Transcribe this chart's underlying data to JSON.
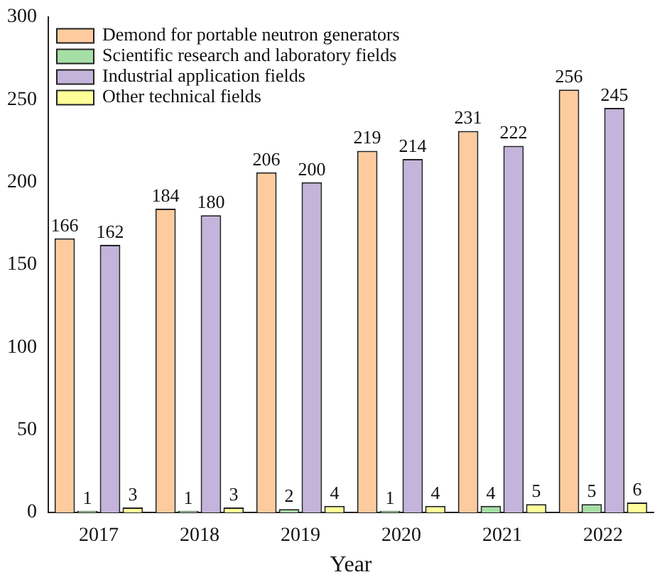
{
  "chart_data": {
    "type": "bar",
    "xlabel": "Year",
    "categories": [
      "2017",
      "2018",
      "2019",
      "2020",
      "2021",
      "2022"
    ],
    "series": [
      {
        "name": "Demond for portable neutron generators",
        "color": "#fdcb9e",
        "values": [
          166,
          184,
          206,
          219,
          231,
          256
        ]
      },
      {
        "name": "Scientific research and laboratory fields",
        "color": "#a6dfa6",
        "values": [
          1,
          1,
          2,
          1,
          4,
          5
        ]
      },
      {
        "name": "Industrial application fields",
        "color": "#c4b4db",
        "values": [
          162,
          180,
          200,
          214,
          222,
          245
        ]
      },
      {
        "name": "Other technical fields",
        "color": "#ffff99",
        "values": [
          3,
          3,
          4,
          4,
          5,
          6
        ]
      }
    ],
    "ylim": [
      0,
      300
    ],
    "yticks": [
      0,
      50,
      100,
      150,
      200,
      250,
      300
    ],
    "grid": false,
    "legend": "top left",
    "data_labels": true
  }
}
